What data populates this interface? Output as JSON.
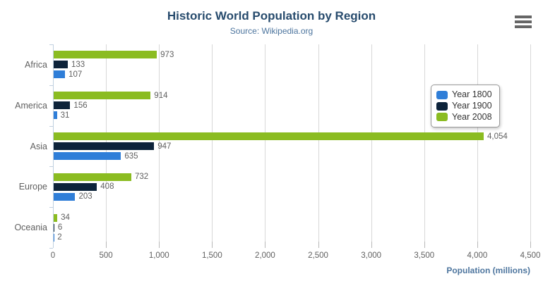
{
  "title": "Historic World Population by Region",
  "subtitle": "Source: Wikipedia.org",
  "menu_button": "chart context menu",
  "chart_data": {
    "type": "bar",
    "orientation": "horizontal",
    "title": "Historic World Population by Region",
    "subtitle": "Source: Wikipedia.org",
    "categories": [
      "Africa",
      "America",
      "Asia",
      "Europe",
      "Oceania"
    ],
    "series": [
      {
        "name": "Year 1800",
        "color": "#2f7ed8",
        "values": [
          107,
          31,
          635,
          203,
          2
        ]
      },
      {
        "name": "Year 1900",
        "color": "#0d233a",
        "values": [
          133,
          156,
          947,
          408,
          6
        ]
      },
      {
        "name": "Year 2008",
        "color": "#8bbc21",
        "values": [
          973,
          914,
          4054,
          732,
          34
        ]
      }
    ],
    "visual_series_order_top_to_bottom": [
      "Year 2008",
      "Year 1900",
      "Year 1800"
    ],
    "xlabel": "Population (millions)",
    "ylabel": "",
    "xlim": [
      0,
      4500
    ],
    "xticks": [
      0,
      500,
      1000,
      1500,
      2000,
      2500,
      3000,
      3500,
      4000,
      4500
    ],
    "tick_labels": [
      "0",
      "500",
      "1,000",
      "1,500",
      "2,000",
      "2,500",
      "3,000",
      "3,500",
      "4,000",
      "4,500"
    ],
    "grid": true,
    "data_labels": true,
    "legend_position": "right-top-floating"
  },
  "colors": {
    "title_color": "#274b6d",
    "subtitle_color": "#4d759e",
    "axis_title_color": "#4d759e",
    "label_color": "#606060",
    "gridline_color": "#d8d8d8",
    "axis_line_color": "#c0d0e0",
    "tick_color": "#b8b8b8",
    "legend_border_color": "#999999",
    "menu_icon_color": "#666666"
  }
}
